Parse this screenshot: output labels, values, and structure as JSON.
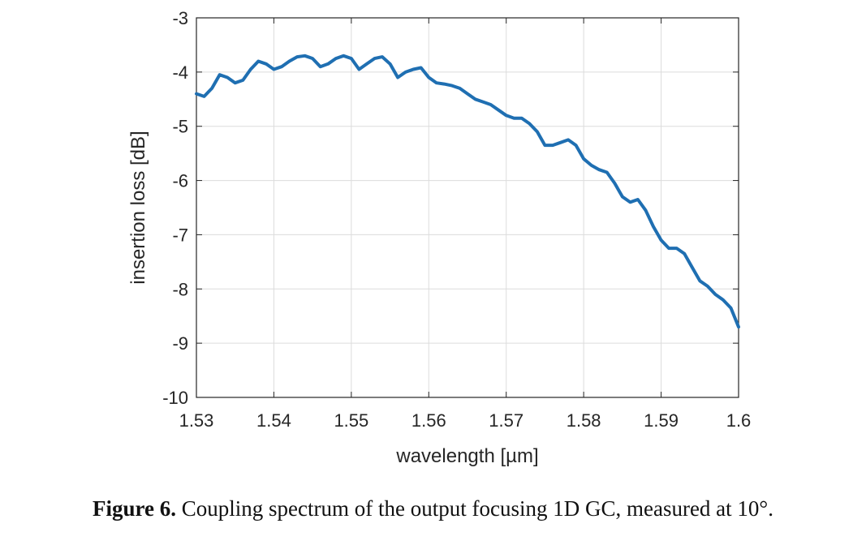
{
  "chart_data": {
    "type": "line",
    "xlabel": "wavelength [µm]",
    "ylabel": "insertion loss [dB]",
    "xlim": [
      1.53,
      1.6
    ],
    "ylim": [
      -10,
      -3
    ],
    "x_ticks": [
      "1.53",
      "1.54",
      "1.55",
      "1.56",
      "1.57",
      "1.58",
      "1.59",
      "1.6"
    ],
    "y_ticks": [
      "-3",
      "-4",
      "-5",
      "-6",
      "-7",
      "-8",
      "-9",
      "-10"
    ],
    "grid": true,
    "series": [
      {
        "color": "#1f6fb2",
        "x": [
          1.53,
          1.531,
          1.532,
          1.533,
          1.534,
          1.535,
          1.536,
          1.537,
          1.538,
          1.539,
          1.54,
          1.541,
          1.542,
          1.543,
          1.544,
          1.545,
          1.546,
          1.547,
          1.548,
          1.549,
          1.55,
          1.551,
          1.552,
          1.553,
          1.554,
          1.555,
          1.556,
          1.557,
          1.558,
          1.559,
          1.56,
          1.561,
          1.562,
          1.563,
          1.564,
          1.565,
          1.566,
          1.567,
          1.568,
          1.569,
          1.57,
          1.571,
          1.572,
          1.573,
          1.574,
          1.575,
          1.576,
          1.577,
          1.578,
          1.579,
          1.58,
          1.581,
          1.582,
          1.583,
          1.584,
          1.585,
          1.586,
          1.587,
          1.588,
          1.589,
          1.59,
          1.591,
          1.592,
          1.593,
          1.594,
          1.595,
          1.596,
          1.597,
          1.598,
          1.599,
          1.6
        ],
        "y": [
          -4.4,
          -4.45,
          -4.3,
          -4.05,
          -4.1,
          -4.2,
          -4.15,
          -3.95,
          -3.8,
          -3.85,
          -3.95,
          -3.9,
          -3.8,
          -3.72,
          -3.7,
          -3.75,
          -3.9,
          -3.85,
          -3.75,
          -3.7,
          -3.75,
          -3.95,
          -3.85,
          -3.75,
          -3.72,
          -3.85,
          -4.1,
          -4.0,
          -3.95,
          -3.92,
          -4.1,
          -4.2,
          -4.22,
          -4.25,
          -4.3,
          -4.4,
          -4.5,
          -4.55,
          -4.6,
          -4.7,
          -4.8,
          -4.85,
          -4.85,
          -4.95,
          -5.1,
          -5.35,
          -5.35,
          -5.3,
          -5.25,
          -5.35,
          -5.6,
          -5.72,
          -5.8,
          -5.85,
          -6.05,
          -6.3,
          -6.4,
          -6.35,
          -6.55,
          -6.85,
          -7.1,
          -7.25,
          -7.25,
          -7.35,
          -7.6,
          -7.85,
          -7.95,
          -8.1,
          -8.2,
          -8.35,
          -8.7
        ]
      }
    ]
  },
  "caption": {
    "label": "Figure 6.",
    "text": " Coupling spectrum of the output focusing 1D GC, measured at 10°."
  }
}
